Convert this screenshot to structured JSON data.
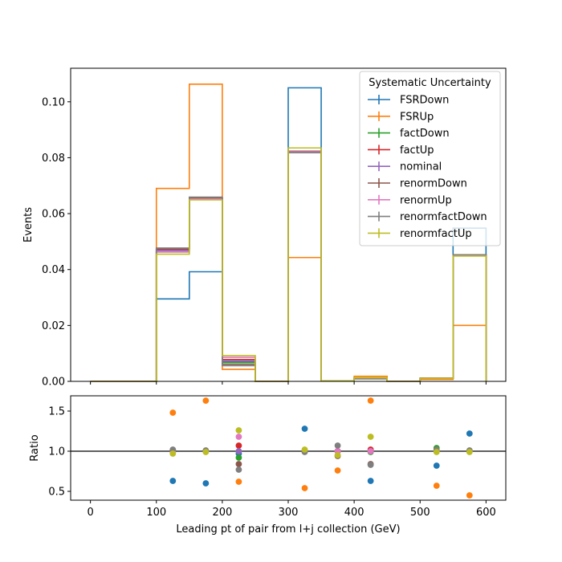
{
  "chart_data": [
    {
      "type": "line",
      "panel": "main",
      "ylabel": "Events",
      "ylim": [
        0,
        0.112
      ],
      "xlim": [
        -30,
        630
      ],
      "yticks": [
        0.0,
        0.02,
        0.04,
        0.06,
        0.08,
        0.1
      ],
      "ytick_labels": [
        "0.00",
        "0.02",
        "0.04",
        "0.06",
        "0.08",
        "0.10"
      ],
      "bin_edges": [
        0,
        50,
        100,
        150,
        200,
        250,
        300,
        350,
        400,
        450,
        500,
        550,
        600
      ],
      "legend": {
        "title": "Systematic Uncertainty",
        "placement": "top-right"
      },
      "series": [
        {
          "name": "FSRDown",
          "color": "#1f77b4",
          "values": [
            0,
            0,
            0.0295,
            0.0392,
            0.0071,
            0,
            0.105,
            0.0002,
            0.001,
            0,
            0.0009,
            0.0548
          ]
        },
        {
          "name": "FSRUp",
          "color": "#ff7f0e",
          "values": [
            0,
            0,
            0.069,
            0.1063,
            0.0043,
            0,
            0.0443,
            0.0002,
            0.0018,
            0,
            0.0007,
            0.02
          ]
        },
        {
          "name": "factDown",
          "color": "#2ca02c",
          "values": [
            0,
            0,
            0.0463,
            0.0652,
            0.0067,
            0,
            0.0821,
            0.0002,
            0.0011,
            0,
            0.0012,
            0.045
          ]
        },
        {
          "name": "factUp",
          "color": "#d62728",
          "values": [
            0,
            0,
            0.0472,
            0.0656,
            0.0078,
            0,
            0.0823,
            0.0002,
            0.0011,
            0,
            0.0011,
            0.0452
          ]
        },
        {
          "name": "nominal",
          "color": "#9467bd",
          "values": [
            0,
            0,
            0.0468,
            0.0654,
            0.0073,
            0,
            0.0822,
            0.0002,
            0.0011,
            0,
            0.0011,
            0.0451
          ]
        },
        {
          "name": "renormDown",
          "color": "#8c564b",
          "values": [
            0,
            0,
            0.0474,
            0.0657,
            0.0061,
            0,
            0.0823,
            0.0002,
            0.0009,
            0,
            0.0011,
            0.0452
          ]
        },
        {
          "name": "renormUp",
          "color": "#e377c2",
          "values": [
            0,
            0,
            0.0463,
            0.0652,
            0.0086,
            0,
            0.0821,
            0.0002,
            0.0011,
            0,
            0.0011,
            0.045
          ]
        },
        {
          "name": "renormfactDown",
          "color": "#7f7f7f",
          "values": [
            0,
            0,
            0.0477,
            0.0659,
            0.0056,
            0,
            0.0818,
            0.0002,
            0.0009,
            0,
            0.0011,
            0.0453
          ]
        },
        {
          "name": "renormfactUp",
          "color": "#bcbd22",
          "values": [
            0,
            0,
            0.0455,
            0.0649,
            0.0092,
            0,
            0.0835,
            0.0002,
            0.0013,
            0,
            0.0011,
            0.0448
          ]
        }
      ]
    },
    {
      "type": "scatter",
      "panel": "ratio",
      "xlabel": "Leading pt of pair from l+j collection (GeV)",
      "ylabel": "Ratio",
      "xlim": [
        -30,
        630
      ],
      "ylim": [
        0.39,
        1.69
      ],
      "xticks": [
        0,
        100,
        200,
        300,
        400,
        500,
        600
      ],
      "xtick_labels": [
        "0",
        "100",
        "200",
        "300",
        "400",
        "500",
        "600"
      ],
      "yticks": [
        0.5,
        1.0,
        1.5
      ],
      "ytick_labels": [
        "0.5",
        "1.0",
        "1.5"
      ],
      "reference_line": 1.0,
      "x": [
        125,
        175,
        225,
        325,
        375,
        425,
        525,
        575
      ],
      "series": [
        {
          "name": "FSRDown",
          "color": "#1f77b4",
          "values": [
            0.63,
            0.6,
            0.97,
            1.28,
            1.0,
            0.63,
            0.82,
            1.22
          ]
        },
        {
          "name": "FSRUp",
          "color": "#ff7f0e",
          "values": [
            1.48,
            1.63,
            0.62,
            0.54,
            0.76,
            1.63,
            0.57,
            0.45
          ]
        },
        {
          "name": "factDown",
          "color": "#2ca02c",
          "values": [
            0.99,
            1.0,
            0.92,
            1.0,
            1.0,
            0.99,
            1.04,
            1.0
          ]
        },
        {
          "name": "factUp",
          "color": "#d62728",
          "values": [
            1.01,
            1.0,
            1.07,
            1.0,
            1.0,
            1.02,
            1.0,
            1.0
          ]
        },
        {
          "name": "nominal",
          "color": "#9467bd",
          "values": [
            1.0,
            1.0,
            1.0,
            1.0,
            1.0,
            1.0,
            1.0,
            1.0
          ]
        },
        {
          "name": "renormDown",
          "color": "#8c564b",
          "values": [
            1.01,
            1.0,
            0.84,
            1.0,
            0.94,
            0.84,
            1.0,
            1.0
          ]
        },
        {
          "name": "renormUp",
          "color": "#e377c2",
          "values": [
            0.99,
            1.0,
            1.18,
            1.0,
            1.0,
            1.0,
            1.0,
            1.0
          ]
        },
        {
          "name": "renormfactDown",
          "color": "#7f7f7f",
          "values": [
            1.02,
            1.01,
            0.77,
            0.99,
            1.07,
            0.83,
            1.02,
            1.01
          ]
        },
        {
          "name": "renormfactUp",
          "color": "#bcbd22",
          "values": [
            0.97,
            0.99,
            1.26,
            1.02,
            0.95,
            1.18,
            0.99,
            0.99
          ]
        }
      ]
    }
  ]
}
